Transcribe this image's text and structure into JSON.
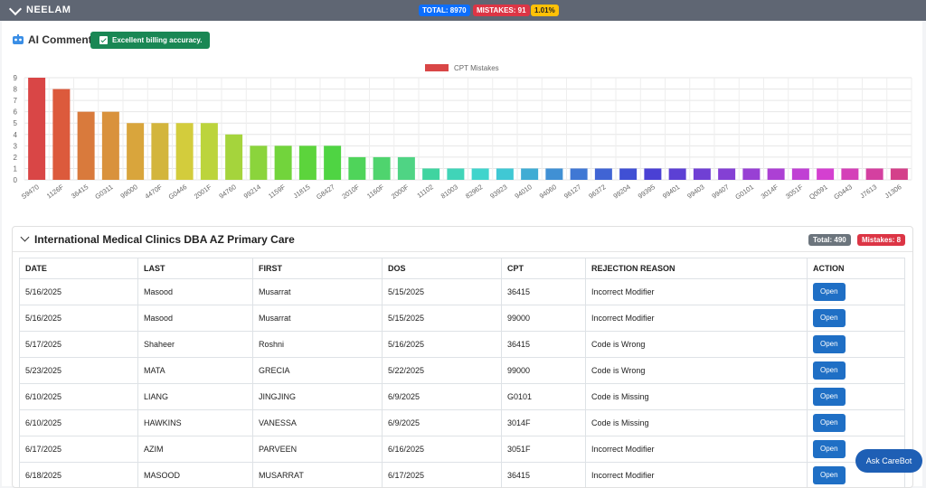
{
  "header": {
    "name": "NEELAM",
    "total": "TOTAL: 8970",
    "mistakes": "MISTAKES: 91",
    "rate": "1.01%"
  },
  "ai": {
    "label": "AI Comment:",
    "comment": "Excellent billing accuracy."
  },
  "chart_data": {
    "type": "bar",
    "legend": "CPT Mistakes",
    "ylim": [
      0,
      9
    ],
    "yticks": [
      0,
      1,
      2,
      3,
      4,
      5,
      6,
      7,
      8,
      9
    ],
    "grid": true,
    "legend_position": "top",
    "categories": [
      "S9470",
      "1126F",
      "36415",
      "G0311",
      "99000",
      "4470F",
      "G0446",
      "2001F",
      "94760",
      "99214",
      "1159F",
      "J1815",
      "G8427",
      "2010F",
      "1160F",
      "2000F",
      "11102",
      "81003",
      "82962",
      "93923",
      "94010",
      "94060",
      "96127",
      "96372",
      "99204",
      "99395",
      "99401",
      "99403",
      "99407",
      "G0101",
      "3014F",
      "3051F",
      "Q0091",
      "G0443",
      "J7613",
      "J1306"
    ],
    "values": [
      9,
      8,
      6,
      6,
      5,
      5,
      5,
      5,
      4,
      3,
      3,
      3,
      3,
      2,
      2,
      2,
      1,
      1,
      1,
      1,
      1,
      1,
      1,
      1,
      1,
      1,
      1,
      1,
      1,
      1,
      1,
      1,
      1,
      1,
      1,
      1
    ],
    "colors": [
      "#d94646",
      "#dc5a3c",
      "#d97a3c",
      "#d9923c",
      "#d9a53c",
      "#d3b53c",
      "#d3cc3c",
      "#bcd43c",
      "#a5d43c",
      "#8bd43c",
      "#72d43c",
      "#5cd43c",
      "#4fd443",
      "#4fd45a",
      "#4fd46e",
      "#4fd484",
      "#40d4a0",
      "#40d4b8",
      "#40d4cc",
      "#40c8d4",
      "#40acd4",
      "#4090d4",
      "#4078d4",
      "#4064d4",
      "#4050d4",
      "#4a40d4",
      "#5c40d4",
      "#7040d4",
      "#8440d4",
      "#9840d4",
      "#ac40d4",
      "#c040d4",
      "#d440d0",
      "#d440b8",
      "#d440a0",
      "#d4408a"
    ]
  },
  "section": {
    "title": "International Medical Clinics DBA AZ Primary Care",
    "total": "Total: 490",
    "mistakes": "Mistakes: 8"
  },
  "table": {
    "headers": [
      "DATE",
      "LAST",
      "FIRST",
      "DOS",
      "CPT",
      "REJECTION REASON",
      "ACTION"
    ],
    "rows": [
      [
        "5/16/2025",
        "Masood",
        "Musarrat",
        "5/15/2025",
        "36415",
        "Incorrect Modifier"
      ],
      [
        "5/16/2025",
        "Masood",
        "Musarrat",
        "5/15/2025",
        "99000",
        "Incorrect Modifier"
      ],
      [
        "5/17/2025",
        "Shaheer",
        "Roshni",
        "5/16/2025",
        "36415",
        "Code is Wrong"
      ],
      [
        "5/23/2025",
        "MATA",
        "GRECIA",
        "5/22/2025",
        "99000",
        "Code is Wrong"
      ],
      [
        "6/10/2025",
        "LIANG",
        "JINGJING",
        "6/9/2025",
        "G0101",
        "Code is Missing"
      ],
      [
        "6/10/2025",
        "HAWKINS",
        "VANESSA",
        "6/9/2025",
        "3014F",
        "Code is Missing"
      ],
      [
        "6/17/2025",
        "AZIM",
        "PARVEEN",
        "6/16/2025",
        "3051F",
        "Incorrect Modifier"
      ],
      [
        "6/18/2025",
        "MASOOD",
        "MUSARRAT",
        "6/17/2025",
        "36415",
        "Incorrect Modifier"
      ]
    ],
    "action_label": "Open"
  },
  "carebot": {
    "label": "Ask CareBot"
  }
}
